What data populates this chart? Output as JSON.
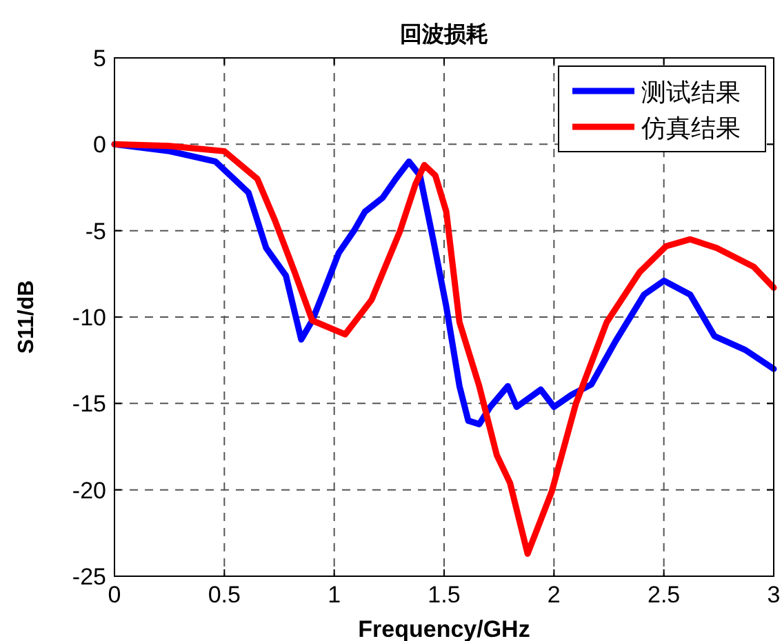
{
  "chart_data": {
    "type": "line",
    "title": "回波损耗",
    "xlabel": "Frequency/GHz",
    "ylabel": "S11/dB",
    "xlim": [
      0,
      3
    ],
    "ylim": [
      -25,
      5
    ],
    "xticks": [
      0,
      0.5,
      1,
      1.5,
      2,
      2.5,
      3
    ],
    "yticks": [
      -25,
      -20,
      -15,
      -10,
      -5,
      0,
      5
    ],
    "grid": true,
    "legend": "top right",
    "line_style": "solid",
    "marker": "none",
    "series": [
      {
        "name": "测试结果",
        "color": "#0000ff",
        "x": [
          0,
          0.25,
          0.46,
          0.61,
          0.69,
          0.78,
          0.85,
          0.9,
          0.95,
          1.02,
          1.09,
          1.14,
          1.22,
          1.28,
          1.34,
          1.39,
          1.45,
          1.51,
          1.57,
          1.61,
          1.66,
          1.71,
          1.79,
          1.83,
          1.94,
          2.0,
          2.08,
          2.17,
          2.28,
          2.41,
          2.5,
          2.62,
          2.73,
          2.87,
          3.0
        ],
        "values": [
          0,
          -0.4,
          -1.0,
          -2.8,
          -6.0,
          -7.6,
          -11.3,
          -10.2,
          -8.6,
          -6.3,
          -5.0,
          -3.9,
          -3.1,
          -2.0,
          -1.0,
          -1.8,
          -5.5,
          -9.4,
          -14.0,
          -16.0,
          -16.2,
          -15.2,
          -14.0,
          -15.2,
          -14.2,
          -15.2,
          -14.5,
          -13.9,
          -11.4,
          -8.7,
          -7.9,
          -8.7,
          -11.1,
          -11.9,
          -13.0
        ]
      },
      {
        "name": "仿真结果",
        "color": "#ff0000",
        "x": [
          0,
          0.25,
          0.5,
          0.65,
          0.73,
          0.82,
          0.9,
          1.05,
          1.17,
          1.3,
          1.37,
          1.41,
          1.46,
          1.51,
          1.57,
          1.66,
          1.74,
          1.8,
          1.88,
          1.99,
          2.1,
          2.24,
          2.39,
          2.51,
          2.62,
          2.74,
          2.91,
          3.0
        ],
        "values": [
          0,
          -0.1,
          -0.4,
          -2.0,
          -4.4,
          -7.4,
          -10.2,
          -11.0,
          -9.0,
          -5.0,
          -2.3,
          -1.2,
          -1.8,
          -3.9,
          -10.3,
          -14.0,
          -18.0,
          -19.6,
          -23.7,
          -20.1,
          -15.0,
          -10.3,
          -7.4,
          -5.9,
          -5.5,
          -6.0,
          -7.1,
          -8.3
        ]
      }
    ]
  }
}
